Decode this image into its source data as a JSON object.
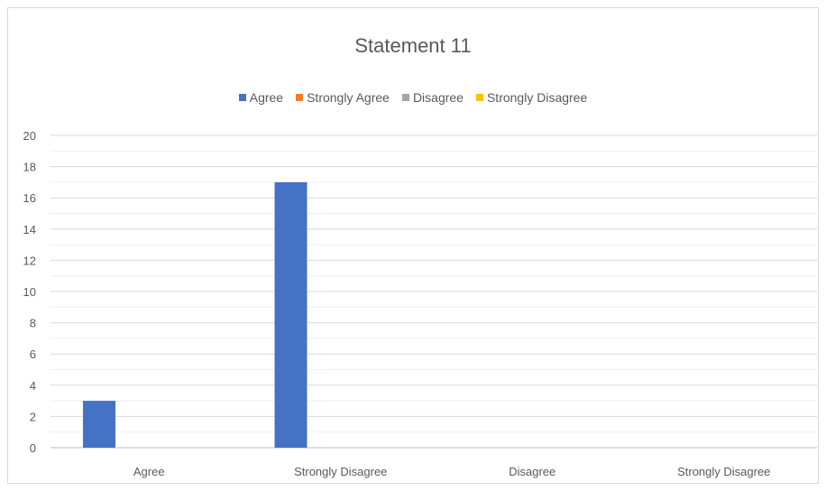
{
  "chart_data": {
    "type": "bar",
    "title": "Statement 11",
    "categories": [
      "Agree",
      "Strongly Disagree",
      "Disagree",
      "Strongly Disagree"
    ],
    "series": [
      {
        "name": "Agree",
        "color": "#4472c4",
        "values": [
          3,
          17,
          0,
          0
        ]
      },
      {
        "name": "Strongly Agree",
        "color": "#ed7d31",
        "values": [
          0,
          0,
          0,
          0
        ]
      },
      {
        "name": "Disagree",
        "color": "#a5a5a5",
        "values": [
          0,
          0,
          0,
          0
        ]
      },
      {
        "name": "Strongly Disagree",
        "color": "#ffc000",
        "values": [
          0,
          0,
          0,
          0
        ]
      }
    ],
    "yticks": [
      "0",
      "2",
      "4",
      "6",
      "8",
      "10",
      "12",
      "14",
      "16",
      "18",
      "20"
    ],
    "ylim": [
      0,
      20
    ],
    "xlabel": "",
    "ylabel": "",
    "grid": true,
    "legend_position": "top"
  }
}
